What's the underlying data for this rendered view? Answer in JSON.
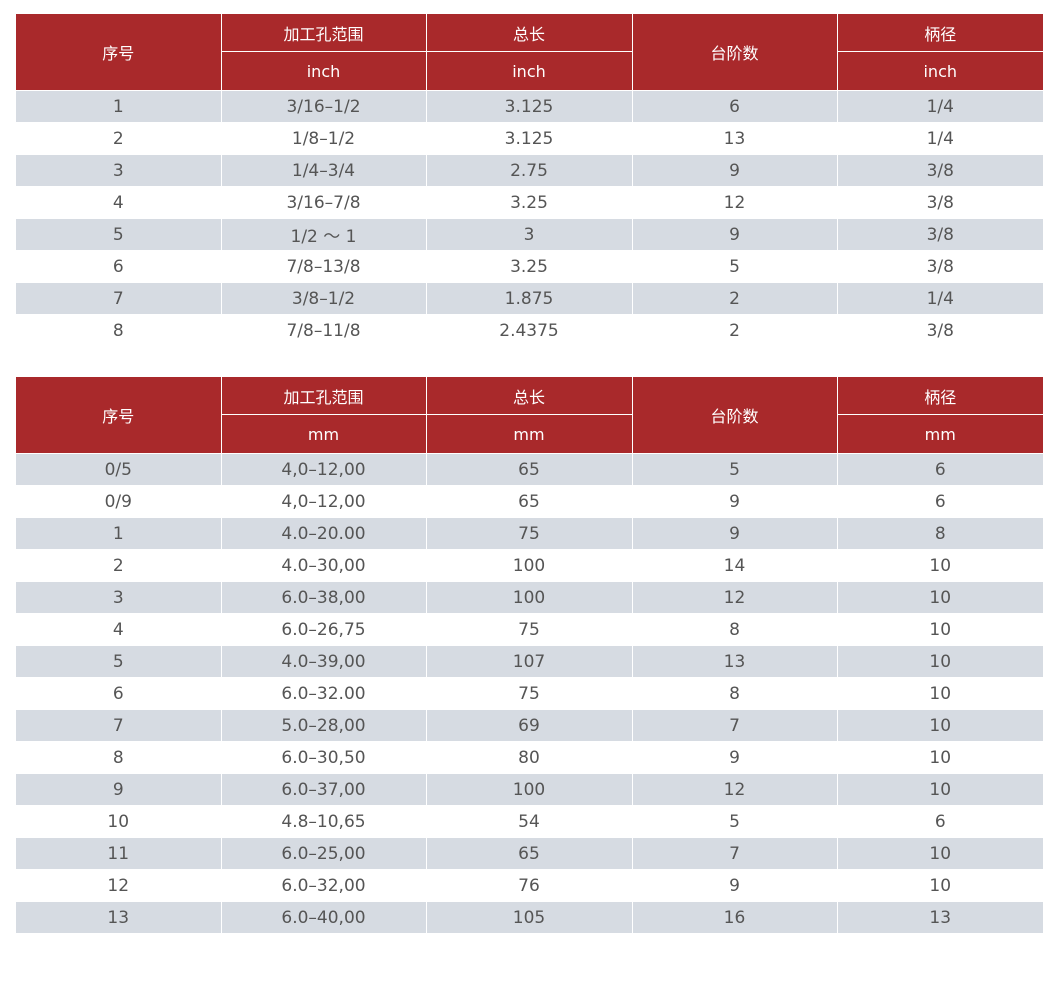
{
  "inch_table": {
    "headers": {
      "index": "序号",
      "range": "加工孔范围",
      "length": "总长",
      "steps": "台阶数",
      "shank": "柄径"
    },
    "units": {
      "range": "inch",
      "length": "inch",
      "shank": "inch"
    },
    "rows": [
      [
        "1",
        "3/16–1/2",
        "3.125",
        "6",
        "1/4"
      ],
      [
        "2",
        "1/8–1/2",
        "3.125",
        "13",
        "1/4"
      ],
      [
        "3",
        "1/4–3/4",
        "2.75",
        "9",
        "3/8"
      ],
      [
        "4",
        "3/16–7/8",
        "3.25",
        "12",
        "3/8"
      ],
      [
        "5",
        "1/2 ～ 1",
        "3",
        "9",
        "3/8"
      ],
      [
        "6",
        "7/8–13/8",
        "3.25",
        "5",
        "3/8"
      ],
      [
        "7",
        "3/8–1/2",
        "1.875",
        "2",
        "1/4"
      ],
      [
        "8",
        "7/8–11/8",
        "2.4375",
        "2",
        "3/8"
      ]
    ]
  },
  "mm_table": {
    "headers": {
      "index": "序号",
      "range": "加工孔范围",
      "length": "总长",
      "steps": "台阶数",
      "shank": "柄径"
    },
    "units": {
      "range": "mm",
      "length": "mm",
      "shank": "mm"
    },
    "rows": [
      [
        "0/5",
        "4,0–12,00",
        "65",
        "5",
        "6"
      ],
      [
        "0/9",
        "4,0–12,00",
        "65",
        "9",
        "6"
      ],
      [
        "1",
        "4.0–20.00",
        "75",
        "9",
        "8"
      ],
      [
        "2",
        "4.0–30,00",
        "100",
        "14",
        "10"
      ],
      [
        "3",
        "6.0–38,00",
        "100",
        "12",
        "10"
      ],
      [
        "4",
        "6.0–26,75",
        "75",
        "8",
        "10"
      ],
      [
        "5",
        "4.0–39,00",
        "107",
        "13",
        "10"
      ],
      [
        "6",
        "6.0–32.00",
        "75",
        "8",
        "10"
      ],
      [
        "7",
        "5.0–28,00",
        "69",
        "7",
        "10"
      ],
      [
        "8",
        "6.0–30,50",
        "80",
        "9",
        "10"
      ],
      [
        "9",
        "6.0–37,00",
        "100",
        "12",
        "10"
      ],
      [
        "10",
        "4.8–10,65",
        "54",
        "5",
        "6"
      ],
      [
        "11",
        "6.0–25,00",
        "65",
        "7",
        "10"
      ],
      [
        "12",
        "6.0–32,00",
        "76",
        "9",
        "10"
      ],
      [
        "13",
        "6.0–40,00",
        "105",
        "16",
        "13"
      ]
    ]
  },
  "colors": {
    "header_bg": "#a9292b",
    "header_text": "#ffffff",
    "stripe_bg": "#d6dbe2",
    "body_text": "#555555"
  }
}
